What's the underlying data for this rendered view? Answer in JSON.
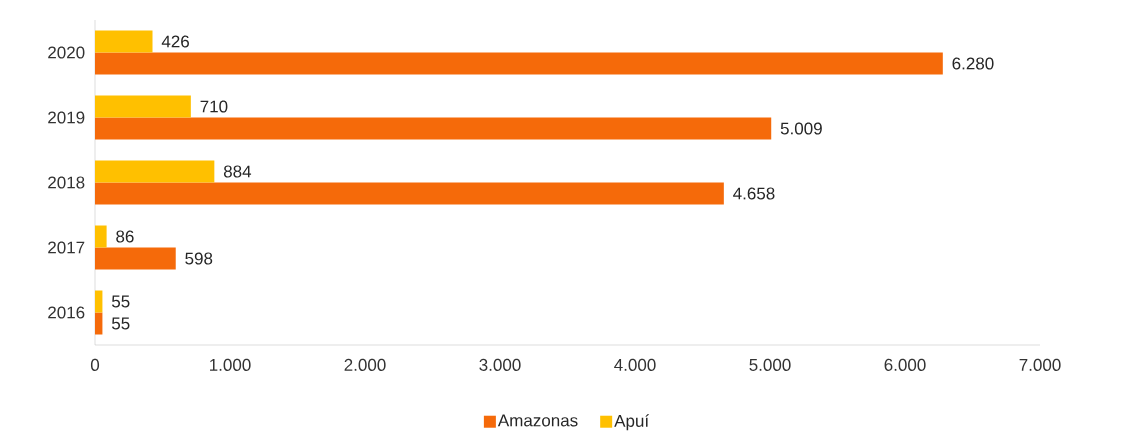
{
  "chart_data": {
    "type": "bar",
    "orientation": "horizontal",
    "categories": [
      "2020",
      "2019",
      "2018",
      "2017",
      "2016"
    ],
    "series": [
      {
        "name": "Amazonas",
        "color": "#f56a0a",
        "values": [
          6280,
          5009,
          4658,
          598,
          55
        ],
        "value_labels": [
          "6.280",
          "5.009",
          "4.658",
          "598",
          "55"
        ]
      },
      {
        "name": "Apuí",
        "color": "#ffc000",
        "values": [
          426,
          710,
          884,
          86,
          55
        ],
        "value_labels": [
          "426",
          "710",
          "884",
          "86",
          "55"
        ]
      }
    ],
    "xlim": [
      0,
      7000
    ],
    "xticks": [
      0,
      {
        "value": 1000,
        "label": "1.000"
      },
      {
        "value": 2000,
        "label": "2.000"
      },
      {
        "value": 3000,
        "label": "3.000"
      },
      {
        "value": 4000,
        "label": "4.000"
      },
      {
        "value": 5000,
        "label": "5.000"
      },
      {
        "value": 6000,
        "label": "6.000"
      },
      {
        "value": 7000,
        "label": "7.000"
      }
    ],
    "legend": "bottom",
    "grid": false
  }
}
